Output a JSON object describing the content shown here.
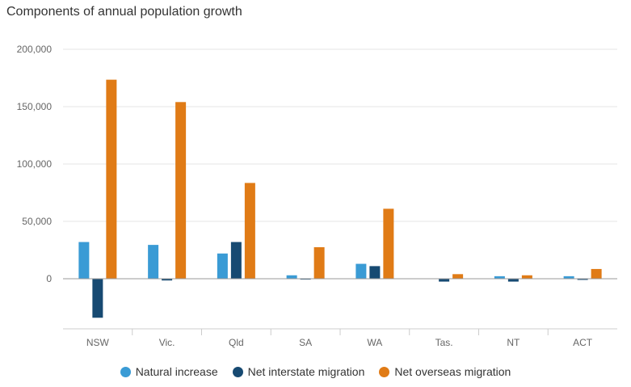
{
  "chart_data": {
    "type": "bar",
    "title": "Components of annual population growth",
    "xlabel": "",
    "ylabel": "",
    "categories": [
      "NSW",
      "Vic.",
      "Qld",
      "SA",
      "WA",
      "Tas.",
      "NT",
      "ACT"
    ],
    "series": [
      {
        "name": "Natural increase",
        "color": "#3A9BD5",
        "values": [
          32000,
          29500,
          22000,
          3000,
          13000,
          0,
          2200,
          2200
        ]
      },
      {
        "name": "Net interstate migration",
        "color": "#174A72",
        "values": [
          -34000,
          -1500,
          32000,
          -500,
          11000,
          -2500,
          -2500,
          -1000
        ]
      },
      {
        "name": "Net overseas migration",
        "color": "#E07B16",
        "values": [
          173500,
          154000,
          83500,
          27500,
          61000,
          4000,
          3000,
          8500
        ]
      }
    ],
    "yticks": [
      {
        "value": 0,
        "label": "0"
      },
      {
        "value": 50000,
        "label": "50,000"
      },
      {
        "value": 100000,
        "label": "100,000"
      },
      {
        "value": 150000,
        "label": "150,000"
      },
      {
        "value": 200000,
        "label": "200,000"
      }
    ],
    "ylim": [
      -45000,
      200000
    ],
    "grid": true,
    "legend_position": "bottom"
  }
}
